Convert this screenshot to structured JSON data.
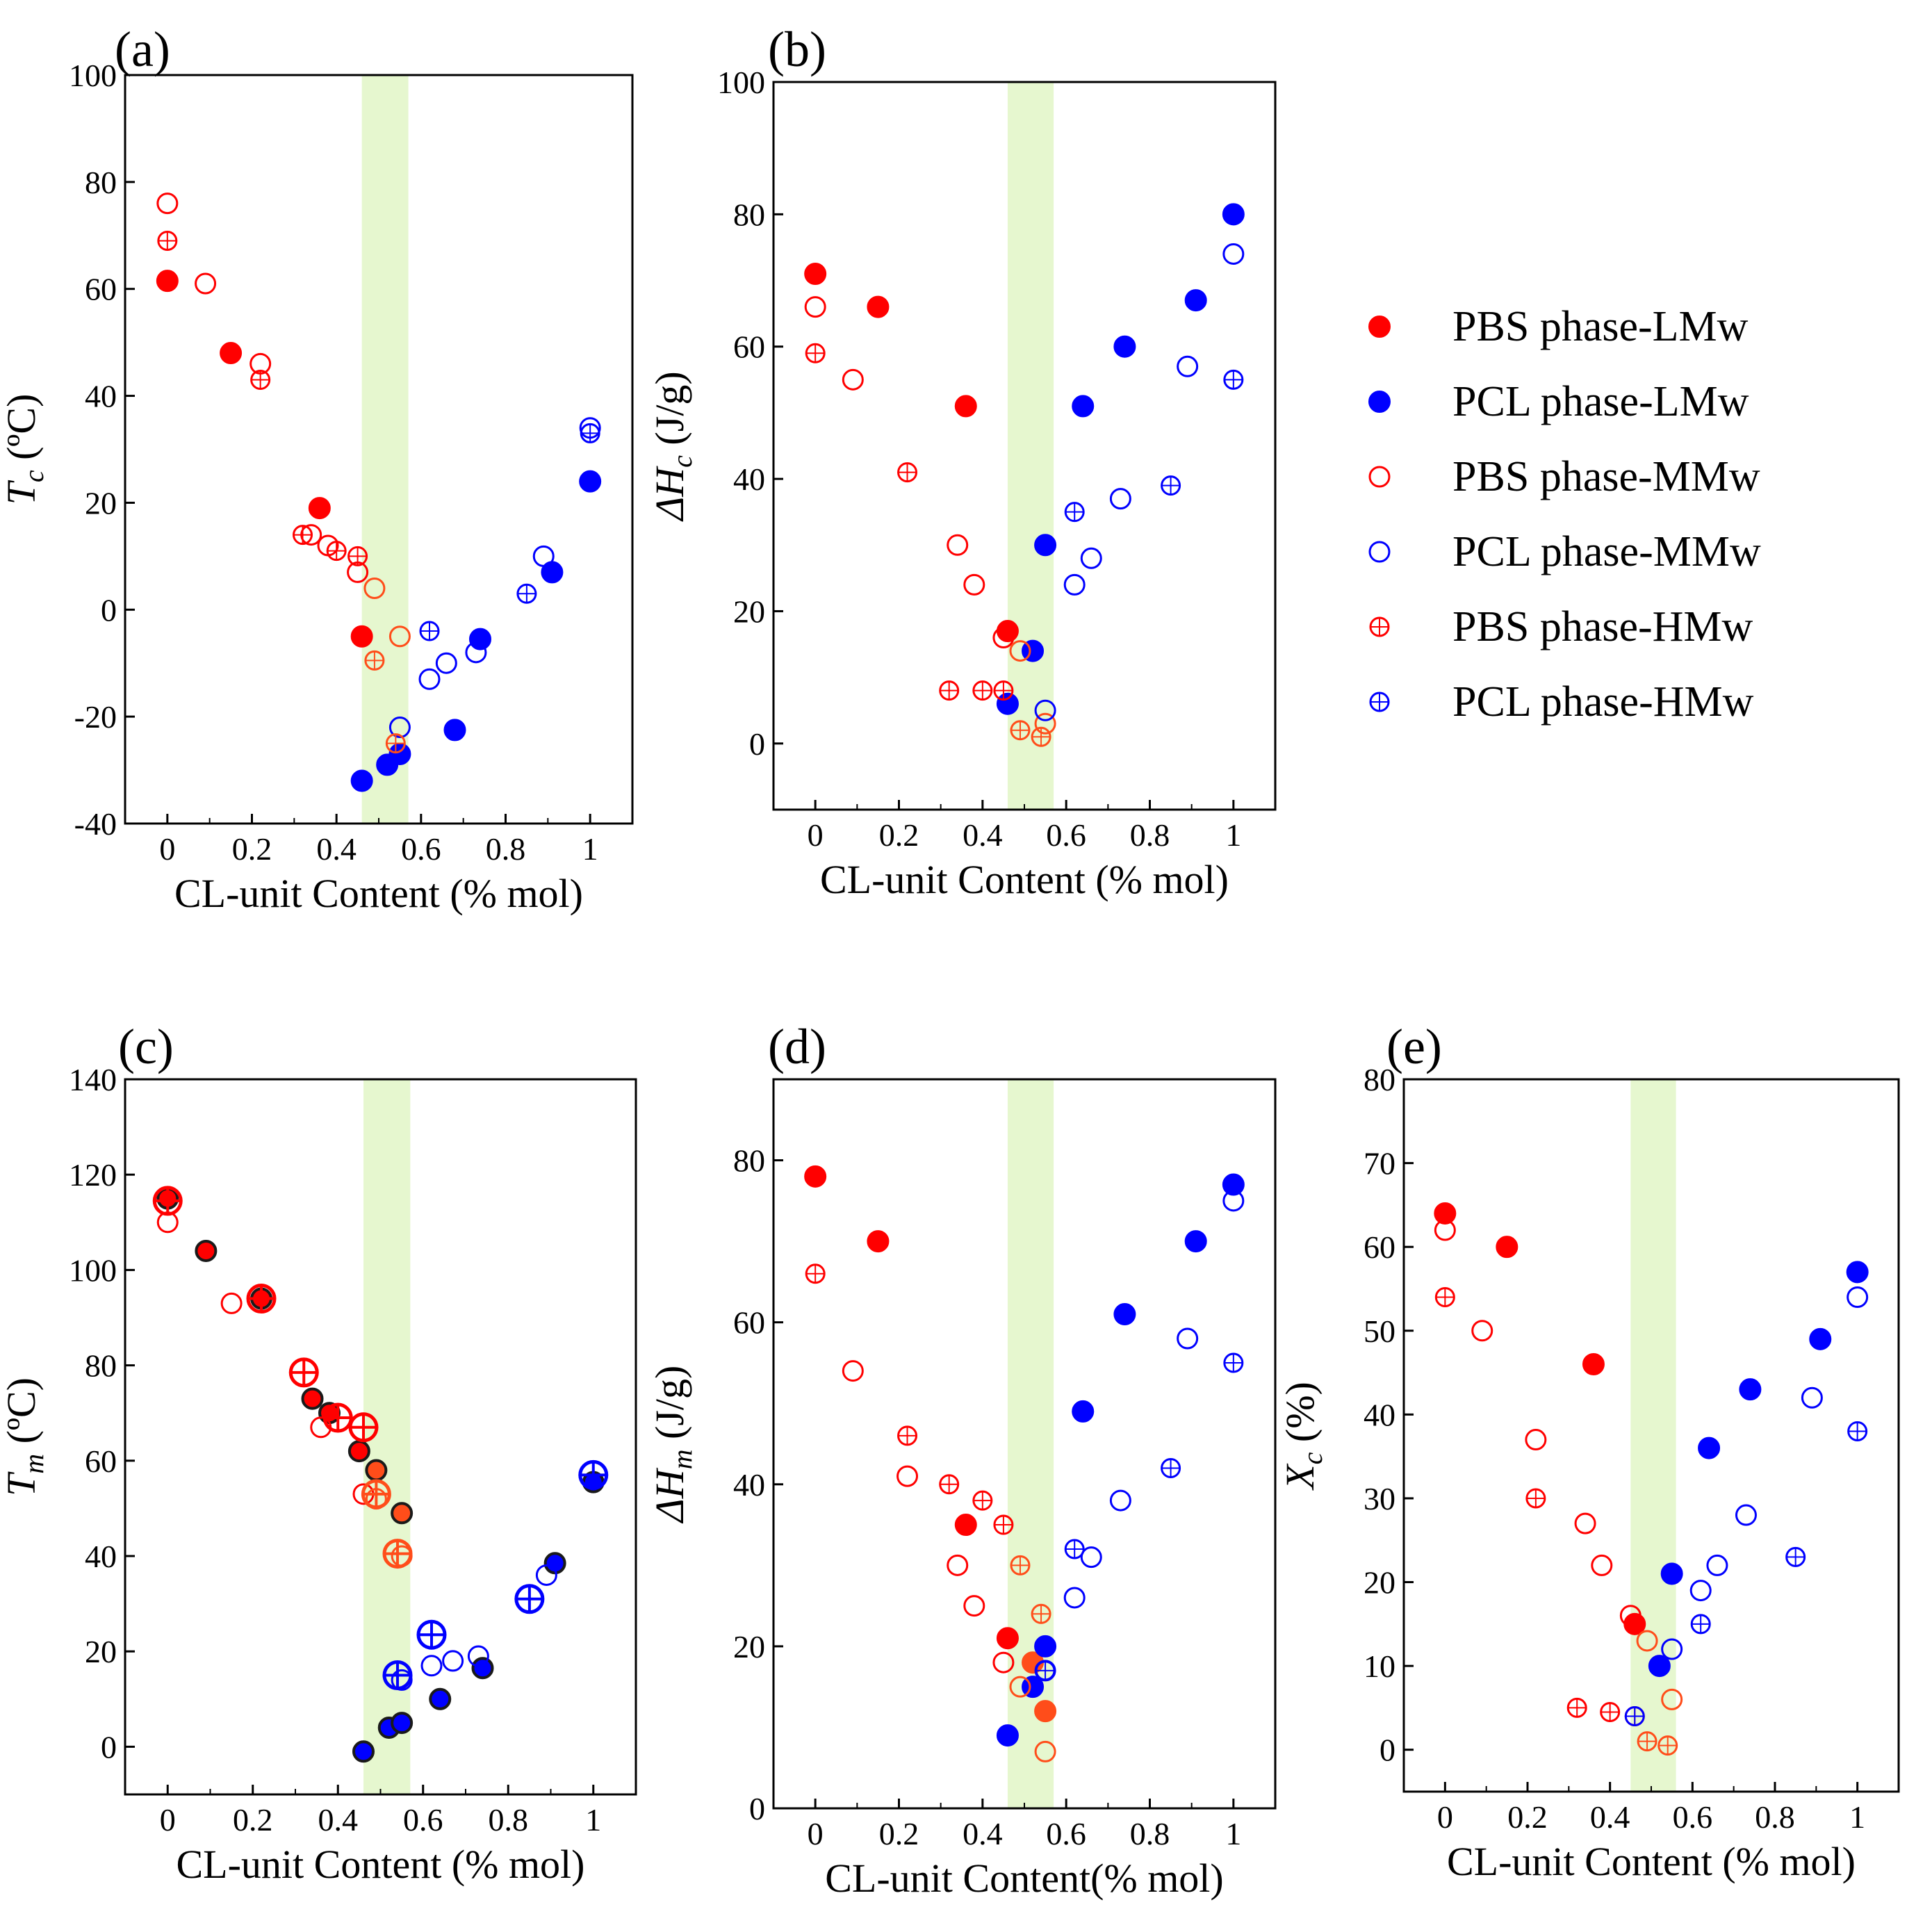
{
  "colors": {
    "pbs": "#ff0000",
    "pcl": "#0000ff",
    "pbs_mid": "#ff4d1a",
    "edge_dark": "#1a1a1a",
    "band": "#e6f7cf"
  },
  "legend": {
    "items": [
      {
        "label": "PBS phase-LMw",
        "color": "#ff0000",
        "marker": "filled"
      },
      {
        "label": "PCL phase-LMw",
        "color": "#0000ff",
        "marker": "filled"
      },
      {
        "label": "PBS phase-MMw",
        "color": "#ff0000",
        "marker": "open"
      },
      {
        "label": "PCL phase-MMw",
        "color": "#0000ff",
        "marker": "open"
      },
      {
        "label": "PBS phase-HMw",
        "color": "#ff0000",
        "marker": "cross"
      },
      {
        "label": "PCL phase-HMw",
        "color": "#0000ff",
        "marker": "cross"
      }
    ]
  },
  "chart_data": [
    {
      "id": "a",
      "panel_label": "(a)",
      "type": "scatter",
      "xlabel": "CL-unit Content (% mol)",
      "ylabel_main": "T",
      "ylabel_sub": "c",
      "ylabel_unit": " (ºC)",
      "xlim": [
        -0.1,
        1.1
      ],
      "ylim": [
        -40,
        100
      ],
      "xticks": [
        0,
        0.2,
        0.4,
        0.6,
        0.8,
        1
      ],
      "xtick_labels": [
        "0",
        "0.2",
        "0.4",
        "0.6",
        "0.8",
        "1"
      ],
      "yticks": [
        -40,
        -20,
        0,
        20,
        40,
        60,
        80,
        100
      ],
      "ytick_labels": [
        "-40",
        "-20",
        "0",
        "20",
        "40",
        "60",
        "80",
        "100"
      ],
      "band": [
        0.46,
        0.57
      ],
      "series": [
        {
          "name": "PBS phase-LMw",
          "marker": "filled",
          "color": "#ff0000",
          "x": [
            0,
            0.15,
            0.36,
            0.46
          ],
          "y": [
            61.5,
            48,
            19,
            -5
          ]
        },
        {
          "name": "PCL phase-LMw",
          "marker": "filled",
          "color": "#0000ff",
          "x": [
            0.46,
            0.52,
            0.55,
            0.68,
            0.74,
            0.91,
            1.0
          ],
          "y": [
            -32,
            -29,
            -27,
            -22.5,
            -5.5,
            7,
            24
          ]
        },
        {
          "name": "PBS phase-MMw",
          "marker": "open",
          "color": "#ff0000",
          "x": [
            0,
            0.09,
            0.22,
            0.34,
            0.38,
            0.45,
            0.49,
            0.55
          ],
          "y": [
            76,
            61,
            46,
            14,
            12,
            7,
            4,
            -5
          ]
        },
        {
          "name": "PCL phase-MMw",
          "marker": "open",
          "color": "#0000ff",
          "x": [
            0.55,
            0.62,
            0.66,
            0.73,
            0.89,
            1.0
          ],
          "y": [
            -22,
            -13,
            -10,
            -8,
            10,
            34
          ]
        },
        {
          "name": "PBS phase-HMw",
          "marker": "cross",
          "color": "#ff0000",
          "x": [
            0,
            0.22,
            0.32,
            0.4,
            0.45,
            0.49,
            0.54
          ],
          "y": [
            69,
            43,
            14,
            11,
            10,
            -9.5,
            -25
          ]
        },
        {
          "name": "PCL phase-HMw",
          "marker": "cross",
          "color": "#0000ff",
          "x": [
            0.62,
            0.85,
            1.0
          ],
          "y": [
            -4,
            3,
            33
          ]
        }
      ]
    },
    {
      "id": "b",
      "panel_label": "(b)",
      "type": "scatter",
      "xlabel": "CL-unit Content (% mol)",
      "ylabel_main": "ΔH",
      "ylabel_sub": "c",
      "ylabel_unit": " (J/g)",
      "xlim": [
        -0.1,
        1.1
      ],
      "ylim": [
        -10,
        100
      ],
      "xticks": [
        0,
        0.2,
        0.4,
        0.6,
        0.8,
        1
      ],
      "xtick_labels": [
        "0",
        "0.2",
        "0.4",
        "0.6",
        "0.8",
        "1"
      ],
      "yticks": [
        0,
        20,
        40,
        60,
        80,
        100
      ],
      "ytick_labels": [
        "0",
        "20",
        "40",
        "60",
        "80",
        "100"
      ],
      "band": [
        0.46,
        0.57
      ],
      "series": [
        {
          "name": "PBS phase-LMw",
          "marker": "filled",
          "color": "#ff0000",
          "x": [
            0,
            0.15,
            0.36,
            0.46
          ],
          "y": [
            71,
            66,
            51,
            17
          ]
        },
        {
          "name": "PCL phase-LMw",
          "marker": "filled",
          "color": "#0000ff",
          "x": [
            0.46,
            0.52,
            0.55,
            0.64,
            0.74,
            0.91,
            1.0
          ],
          "y": [
            6,
            14,
            30,
            51,
            60,
            67,
            80
          ]
        },
        {
          "name": "PBS phase-MMw",
          "marker": "open",
          "color": "#ff0000",
          "x": [
            0,
            0.09,
            0.34,
            0.38,
            0.45,
            0.49,
            0.55
          ],
          "y": [
            66,
            55,
            30,
            24,
            16,
            14,
            3
          ]
        },
        {
          "name": "PCL phase-MMw",
          "marker": "open",
          "color": "#0000ff",
          "x": [
            0.55,
            0.62,
            0.66,
            0.73,
            0.89,
            1.0
          ],
          "y": [
            5,
            24,
            28,
            37,
            57,
            74
          ]
        },
        {
          "name": "PBS phase-HMw",
          "marker": "cross",
          "color": "#ff0000",
          "x": [
            0,
            0.22,
            0.32,
            0.4,
            0.45,
            0.49,
            0.54
          ],
          "y": [
            59,
            41,
            8,
            8,
            8,
            2,
            1
          ]
        },
        {
          "name": "PCL phase-HMw",
          "marker": "cross",
          "color": "#0000ff",
          "x": [
            0.62,
            0.85,
            1.0
          ],
          "y": [
            35,
            39,
            55
          ]
        }
      ]
    },
    {
      "id": "c",
      "panel_label": "(c)",
      "type": "scatter",
      "xlabel": "CL-unit Content (% mol)",
      "ylabel_main": "T",
      "ylabel_sub": "m",
      "ylabel_unit": " (ºC)",
      "xlim": [
        -0.1,
        1.1
      ],
      "ylim": [
        -10,
        140
      ],
      "xticks": [
        0,
        0.2,
        0.4,
        0.6,
        0.8,
        1
      ],
      "xtick_labels": [
        "0",
        "0.2",
        "0.4",
        "0.6",
        "0.8",
        "1"
      ],
      "yticks": [
        0,
        20,
        40,
        60,
        80,
        100,
        120,
        140
      ],
      "ytick_labels": [
        "0",
        "20",
        "40",
        "60",
        "80",
        "100",
        "120",
        "140"
      ],
      "band": [
        0.46,
        0.57
      ],
      "series": [
        {
          "name": "PBS phase-LMw",
          "marker": "filled_dark",
          "color": "#ff0000",
          "x": [
            0,
            0.09,
            0.22,
            0.34,
            0.38,
            0.45,
            0.49,
            0.55
          ],
          "y": [
            115,
            104,
            94,
            73,
            70,
            62,
            58,
            49
          ]
        },
        {
          "name": "PCL phase-LMw",
          "marker": "filled_dark",
          "color": "#0000ff",
          "x": [
            0.46,
            0.52,
            0.55,
            0.64,
            0.74,
            0.91,
            1.0
          ],
          "y": [
            -1,
            4,
            5,
            10,
            16.5,
            38.5,
            55.5
          ]
        },
        {
          "name": "PBS phase-MMw",
          "marker": "open",
          "color": "#ff0000",
          "x": [
            0,
            0.15,
            0.36,
            0.46,
            0.49,
            0.55
          ],
          "y": [
            110,
            93,
            67,
            53,
            52,
            40
          ]
        },
        {
          "name": "PCL phase-MMw",
          "marker": "open",
          "color": "#0000ff",
          "x": [
            0.55,
            0.62,
            0.67,
            0.73,
            0.89
          ],
          "y": [
            14,
            17,
            18,
            19,
            36
          ]
        },
        {
          "name": "PBS phase-HMw",
          "marker": "cross_big",
          "color": "#ff0000",
          "x": [
            0,
            0.22,
            0.32,
            0.4,
            0.46,
            0.49,
            0.54
          ],
          "y": [
            114.5,
            94,
            78.5,
            69,
            67,
            53,
            40.5
          ]
        },
        {
          "name": "PCL phase-HMw",
          "marker": "cross_big",
          "color": "#0000ff",
          "x": [
            0.54,
            0.62,
            0.85,
            1.0
          ],
          "y": [
            15,
            23.5,
            31,
            57
          ]
        }
      ]
    },
    {
      "id": "d",
      "panel_label": "(d)",
      "type": "scatter",
      "xlabel": "CL-unit Content(% mol)",
      "ylabel_main": "ΔH",
      "ylabel_sub": "m",
      "ylabel_unit": " (J/g)",
      "xlim": [
        -0.1,
        1.1
      ],
      "ylim": [
        0,
        90
      ],
      "xticks": [
        0,
        0.2,
        0.4,
        0.6,
        0.8,
        1
      ],
      "xtick_labels": [
        "0",
        "0.2",
        "0.4",
        "0.6",
        "0.8",
        "1"
      ],
      "yticks": [
        0,
        20,
        40,
        60,
        80
      ],
      "ytick_labels": [
        "0",
        "20",
        "40",
        "60",
        "80"
      ],
      "band": [
        0.46,
        0.57
      ],
      "series": [
        {
          "name": "PBS phase-LMw",
          "marker": "filled",
          "color": "#ff0000",
          "x": [
            0,
            0.15,
            0.36,
            0.46,
            0.52,
            0.55
          ],
          "y": [
            78,
            70,
            35,
            21,
            18,
            12
          ]
        },
        {
          "name": "PCL phase-LMw",
          "marker": "filled",
          "color": "#0000ff",
          "x": [
            0.46,
            0.52,
            0.55,
            0.64,
            0.74,
            0.91,
            1.0
          ],
          "y": [
            9,
            15,
            20,
            49,
            61,
            70,
            77
          ]
        },
        {
          "name": "PBS phase-MMw",
          "marker": "open",
          "color": "#ff0000",
          "x": [
            0.09,
            0.22,
            0.34,
            0.38,
            0.45,
            0.49,
            0.55
          ],
          "y": [
            54,
            41,
            30,
            25,
            18,
            15,
            7
          ]
        },
        {
          "name": "PCL phase-MMw",
          "marker": "open",
          "color": "#0000ff",
          "x": [
            0.55,
            0.62,
            0.66,
            0.73,
            0.89,
            1.0
          ],
          "y": [
            17,
            26,
            31,
            38,
            58,
            75
          ]
        },
        {
          "name": "PBS phase-HMw",
          "marker": "cross",
          "color": "#ff0000",
          "x": [
            0,
            0.22,
            0.32,
            0.4,
            0.45,
            0.49,
            0.54
          ],
          "y": [
            66,
            46,
            40,
            38,
            35,
            30,
            24
          ]
        },
        {
          "name": "PCL phase-HMw",
          "marker": "cross",
          "color": "#0000ff",
          "x": [
            0.55,
            0.62,
            0.85,
            1.0
          ],
          "y": [
            17,
            32,
            42,
            55
          ]
        }
      ]
    },
    {
      "id": "e",
      "panel_label": "(e)",
      "type": "scatter",
      "xlabel": "CL-unit Content (% mol)",
      "ylabel_main": "X",
      "ylabel_sub": "c",
      "ylabel_unit": " (%)",
      "xlim": [
        -0.1,
        1.1
      ],
      "ylim": [
        -5,
        80
      ],
      "xticks": [
        0,
        0.2,
        0.4,
        0.6,
        0.8,
        1
      ],
      "xtick_labels": [
        "0",
        "0.2",
        "0.4",
        "0.6",
        "0.8",
        "1"
      ],
      "yticks": [
        0,
        10,
        20,
        30,
        40,
        50,
        60,
        70,
        80
      ],
      "ytick_labels": [
        "0",
        "10",
        "20",
        "30",
        "40",
        "50",
        "60",
        "70",
        "80"
      ],
      "band": [
        0.45,
        0.56
      ],
      "series": [
        {
          "name": "PBS phase-LMw",
          "marker": "filled",
          "color": "#ff0000",
          "x": [
            0,
            0.15,
            0.36,
            0.46
          ],
          "y": [
            64,
            60,
            46,
            15
          ]
        },
        {
          "name": "PCL phase-LMw",
          "marker": "filled",
          "color": "#0000ff",
          "x": [
            0.52,
            0.55,
            0.64,
            0.74,
            0.91,
            1.0
          ],
          "y": [
            10,
            21,
            36,
            43,
            49,
            57
          ]
        },
        {
          "name": "PBS phase-MMw",
          "marker": "open",
          "color": "#ff0000",
          "x": [
            0,
            0.09,
            0.22,
            0.34,
            0.38,
            0.45,
            0.49,
            0.55
          ],
          "y": [
            62,
            50,
            37,
            27,
            22,
            16,
            13,
            6
          ]
        },
        {
          "name": "PCL phase-MMw",
          "marker": "open",
          "color": "#0000ff",
          "x": [
            0.55,
            0.62,
            0.66,
            0.73,
            0.89,
            1.0
          ],
          "y": [
            12,
            19,
            22,
            28,
            42,
            54
          ]
        },
        {
          "name": "PBS phase-HMw",
          "marker": "cross",
          "color": "#ff0000",
          "x": [
            0,
            0.22,
            0.32,
            0.4,
            0.46,
            0.49,
            0.54
          ],
          "y": [
            54,
            30,
            5,
            4.5,
            4,
            1,
            0.5
          ]
        },
        {
          "name": "PCL phase-HMw",
          "marker": "cross",
          "color": "#0000ff",
          "x": [
            0.46,
            0.62,
            0.85,
            1.0
          ],
          "y": [
            4,
            15,
            23,
            38
          ]
        }
      ]
    }
  ]
}
